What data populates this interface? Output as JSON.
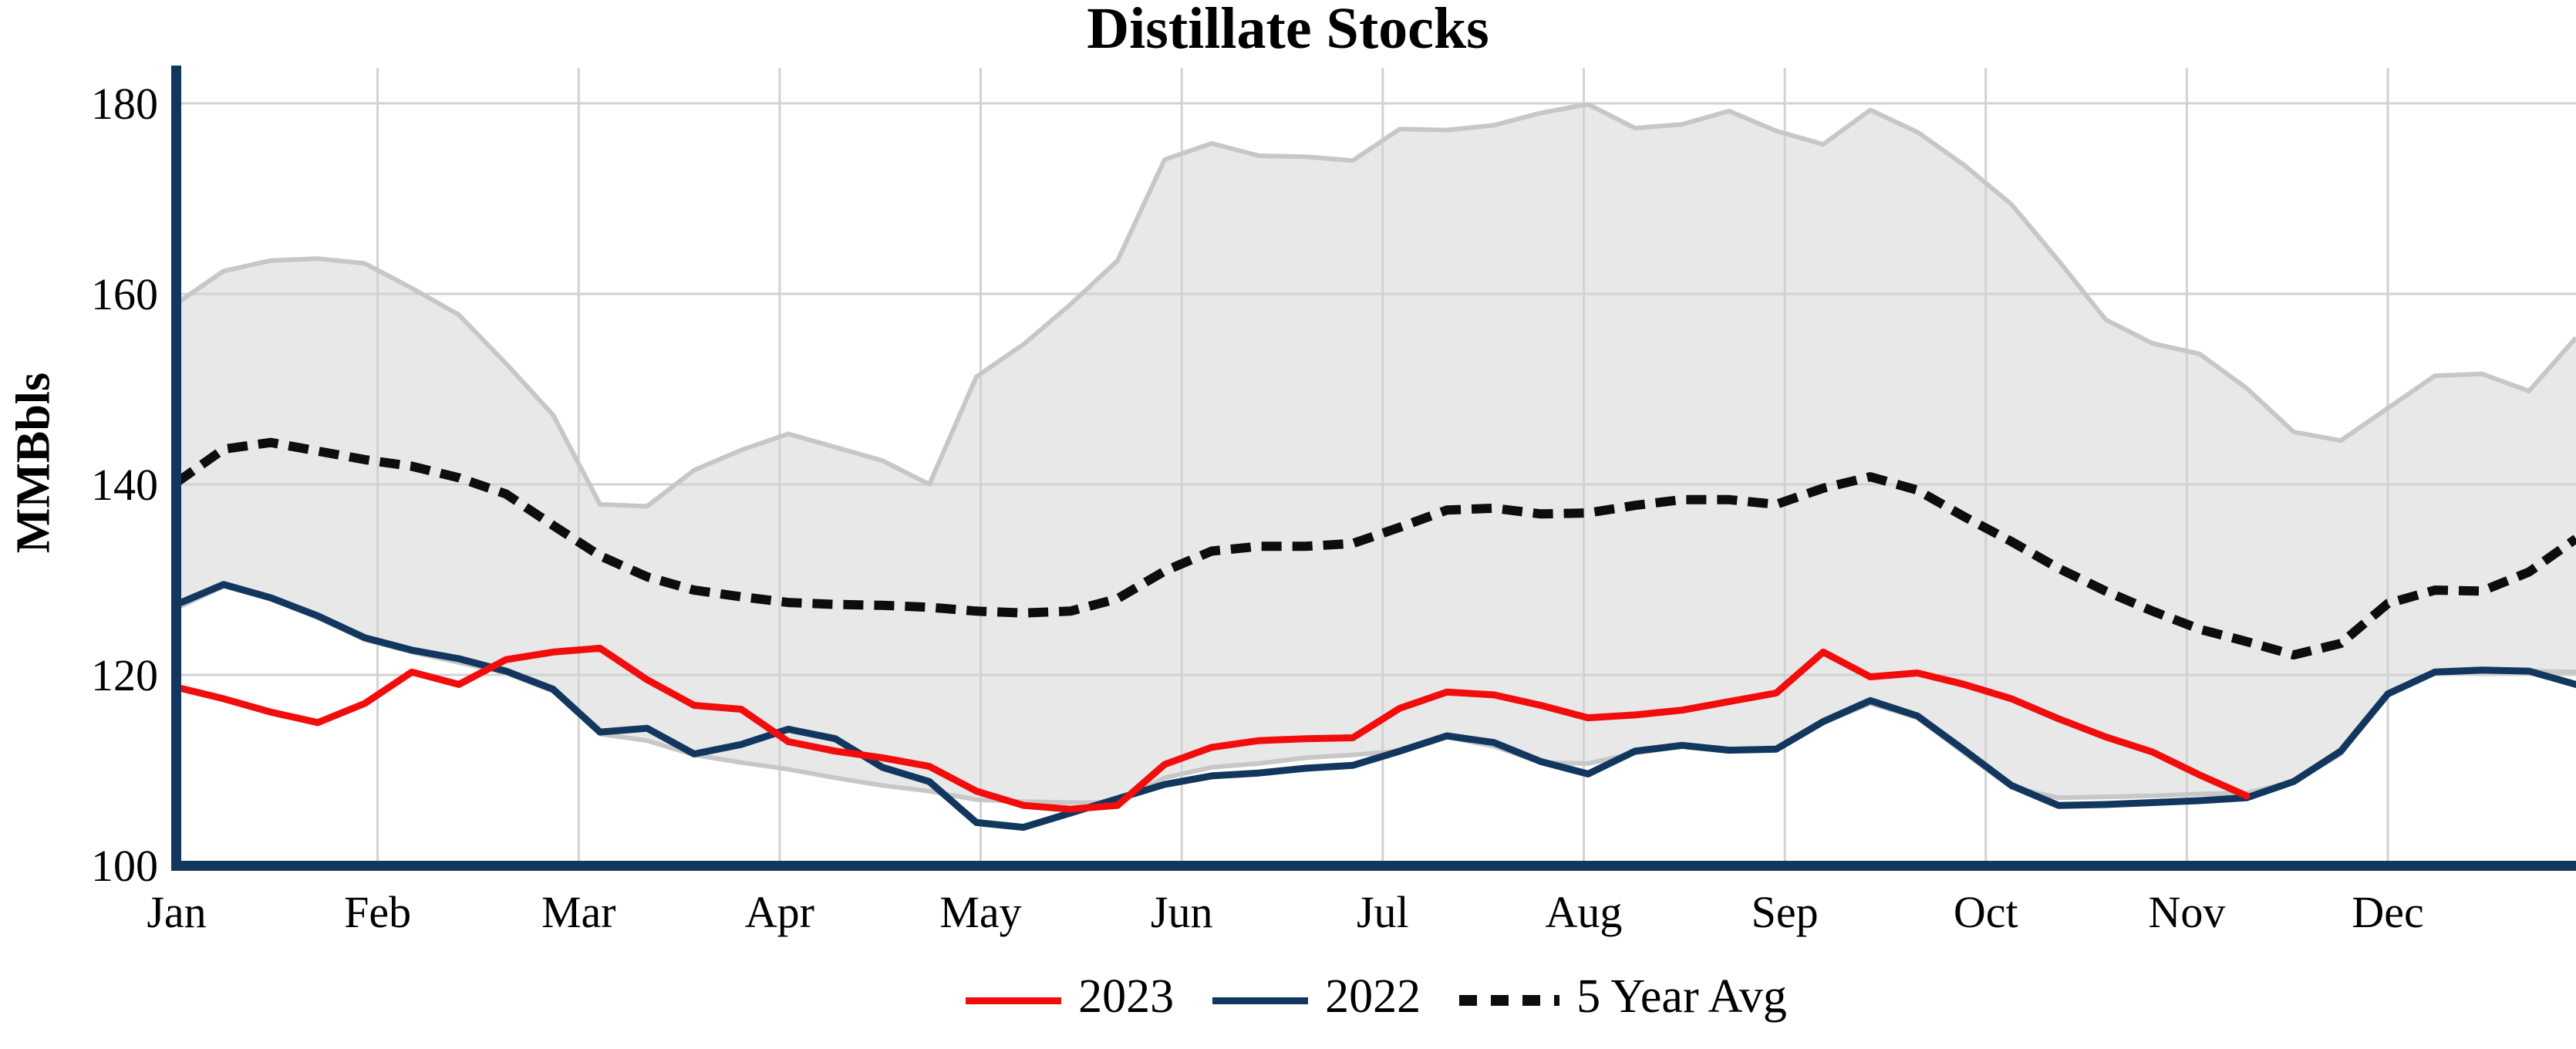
{
  "title": "Distillate Stocks",
  "y_axis": {
    "label": "MMBbls",
    "ticks": [
      100,
      120,
      140,
      160,
      180
    ]
  },
  "x_axis": {
    "months": [
      "Jan",
      "Feb",
      "Mar",
      "Apr",
      "May",
      "Jun",
      "Jul",
      "Aug",
      "Sep",
      "Oct",
      "Nov",
      "Dec"
    ]
  },
  "legend": {
    "items": [
      {
        "label": "2023",
        "swatch": "red-line-swatch",
        "style": "solid"
      },
      {
        "label": "2022",
        "swatch": "navy-line-swatch",
        "style": "solid"
      },
      {
        "label": "5 Year Avg",
        "swatch": "dotted-line-swatch",
        "style": "dotted"
      }
    ]
  },
  "colors": {
    "red_2023": "#f20d0d",
    "navy_2022": "#12375e",
    "avg_dotted": "#0d0d0d",
    "band_fill": "#e8e8e8",
    "band_edge": "#c7c7c7",
    "gridline": "#d2d2d2",
    "axis": "#12375e",
    "text": "#000000"
  },
  "chart_data": {
    "type": "line",
    "title": "Distillate Stocks",
    "xlabel": "",
    "ylabel": "MMBbls",
    "ylim": [
      100,
      183.5
    ],
    "x_unit": "weekly points, week 1 (Jan) to week 52 (end of Dec)",
    "grid": "on",
    "legend_position": "bottom-center",
    "categories_months": [
      "Jan",
      "Feb",
      "Mar",
      "Apr",
      "May",
      "Jun",
      "Jul",
      "Aug",
      "Sep",
      "Oct",
      "Nov",
      "Dec"
    ],
    "series": [
      {
        "name": "2023",
        "style": "solid",
        "color": "#f20d0d",
        "values": [
          118.7,
          117.5,
          116.1,
          115.0,
          117.0,
          120.3,
          119.0,
          121.6,
          122.4,
          122.8,
          119.5,
          116.8,
          116.4,
          113.0,
          112.0,
          111.3,
          110.4,
          107.8,
          106.3,
          105.9,
          106.3,
          110.6,
          112.4,
          113.1,
          113.3,
          113.4,
          116.5,
          118.2,
          117.9,
          116.8,
          115.5,
          115.8,
          116.3,
          117.2,
          118.1,
          122.4,
          119.8,
          120.2,
          119.0,
          117.5,
          115.4,
          113.5,
          111.9,
          109.5,
          107.3
        ]
      },
      {
        "name": "2022",
        "style": "solid",
        "color": "#12375e",
        "values": [
          127.4,
          129.5,
          128.1,
          126.2,
          123.9,
          122.6,
          121.7,
          120.4,
          118.5,
          114.0,
          114.4,
          111.7,
          112.7,
          114.3,
          113.3,
          110.3,
          108.8,
          104.5,
          104.0,
          105.5,
          107.0,
          108.5,
          109.4,
          109.7,
          110.2,
          110.5,
          112.0,
          113.6,
          112.9,
          110.9,
          109.6,
          112.0,
          112.6,
          112.1,
          112.2,
          115.1,
          117.3,
          115.7,
          112.1,
          108.4,
          106.3,
          106.4,
          106.6,
          106.8,
          107.1,
          108.8,
          112.0,
          118.0,
          120.3,
          120.5,
          120.4,
          119.0
        ]
      },
      {
        "name": "5 Year Avg",
        "style": "dotted",
        "color": "#0d0d0d",
        "values": [
          140.2,
          143.7,
          144.4,
          143.5,
          142.6,
          141.9,
          140.7,
          139.0,
          135.7,
          132.5,
          130.3,
          128.9,
          128.2,
          127.6,
          127.4,
          127.3,
          127.1,
          126.7,
          126.5,
          126.7,
          128.0,
          130.9,
          133.0,
          133.5,
          133.5,
          133.8,
          135.5,
          137.3,
          137.5,
          136.9,
          137.0,
          137.8,
          138.4,
          138.4,
          137.9,
          139.6,
          140.8,
          139.4,
          136.6,
          134.0,
          131.2,
          128.8,
          126.7,
          124.8,
          123.5,
          122.1,
          123.3,
          127.5,
          128.9,
          128.8,
          130.8,
          134.3
        ]
      }
    ],
    "range_band": {
      "name": "5-year range",
      "fill": "#e8e8e8",
      "top": [
        159.0,
        162.4,
        163.5,
        163.7,
        163.2,
        160.6,
        157.8,
        152.7,
        147.3,
        137.9,
        137.7,
        141.5,
        143.6,
        145.3,
        143.9,
        142.5,
        140.0,
        151.3,
        154.7,
        158.9,
        163.5,
        174.1,
        175.8,
        174.5,
        174.4,
        174.0,
        177.3,
        177.2,
        177.7,
        179.0,
        179.9,
        177.4,
        177.8,
        179.2,
        177.1,
        175.7,
        179.3,
        177.0,
        173.5,
        169.4,
        163.5,
        157.3,
        154.8,
        153.7,
        150.1,
        145.5,
        144.6,
        148.0,
        151.4,
        151.6,
        149.8,
        155.4
      ],
      "bottom": [
        127.0,
        129.3,
        128.0,
        126.0,
        123.7,
        122.4,
        121.3,
        120.2,
        118.3,
        113.8,
        113.1,
        111.6,
        110.8,
        110.1,
        109.2,
        108.4,
        107.8,
        106.9,
        106.7,
        106.6,
        106.6,
        109.2,
        110.3,
        110.7,
        111.3,
        111.6,
        112.0,
        113.5,
        112.5,
        110.8,
        110.7,
        111.8,
        112.5,
        112.0,
        112.2,
        115.0,
        117.0,
        115.5,
        111.8,
        108.2,
        107.1,
        107.2,
        107.3,
        107.5,
        107.6,
        108.8,
        111.7,
        118.2,
        120.3,
        120.4,
        120.4,
        120.3
      ]
    }
  }
}
